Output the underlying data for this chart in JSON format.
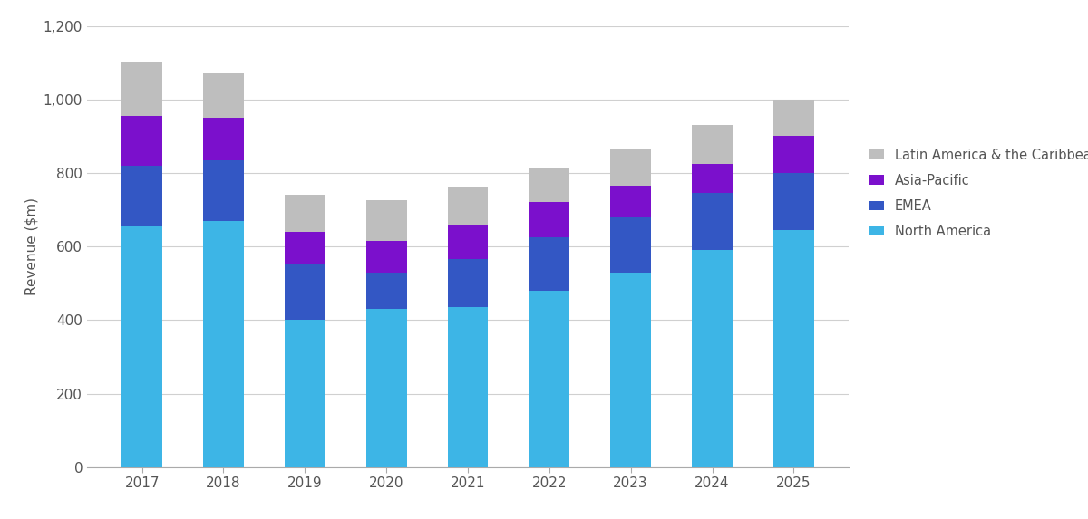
{
  "years": [
    2017,
    2018,
    2019,
    2020,
    2021,
    2022,
    2023,
    2024,
    2025
  ],
  "north_america": [
    655,
    670,
    400,
    430,
    435,
    480,
    530,
    590,
    645
  ],
  "emea": [
    165,
    165,
    150,
    100,
    130,
    145,
    150,
    155,
    155
  ],
  "asia_pacific": [
    135,
    115,
    90,
    85,
    95,
    95,
    85,
    80,
    100
  ],
  "latin_america": [
    145,
    120,
    100,
    110,
    100,
    95,
    100,
    105,
    100
  ],
  "colors": {
    "north_america": "#3DB5E6",
    "emea": "#3357C4",
    "asia_pacific": "#7B10CC",
    "latin_america": "#BEBEBE"
  },
  "ylabel": "Revenue ($m)",
  "ylim": [
    0,
    1200
  ],
  "yticks": [
    0,
    200,
    400,
    600,
    800,
    1000,
    1200
  ],
  "background_color": "#ffffff",
  "grid_color": "#D0D0D0"
}
